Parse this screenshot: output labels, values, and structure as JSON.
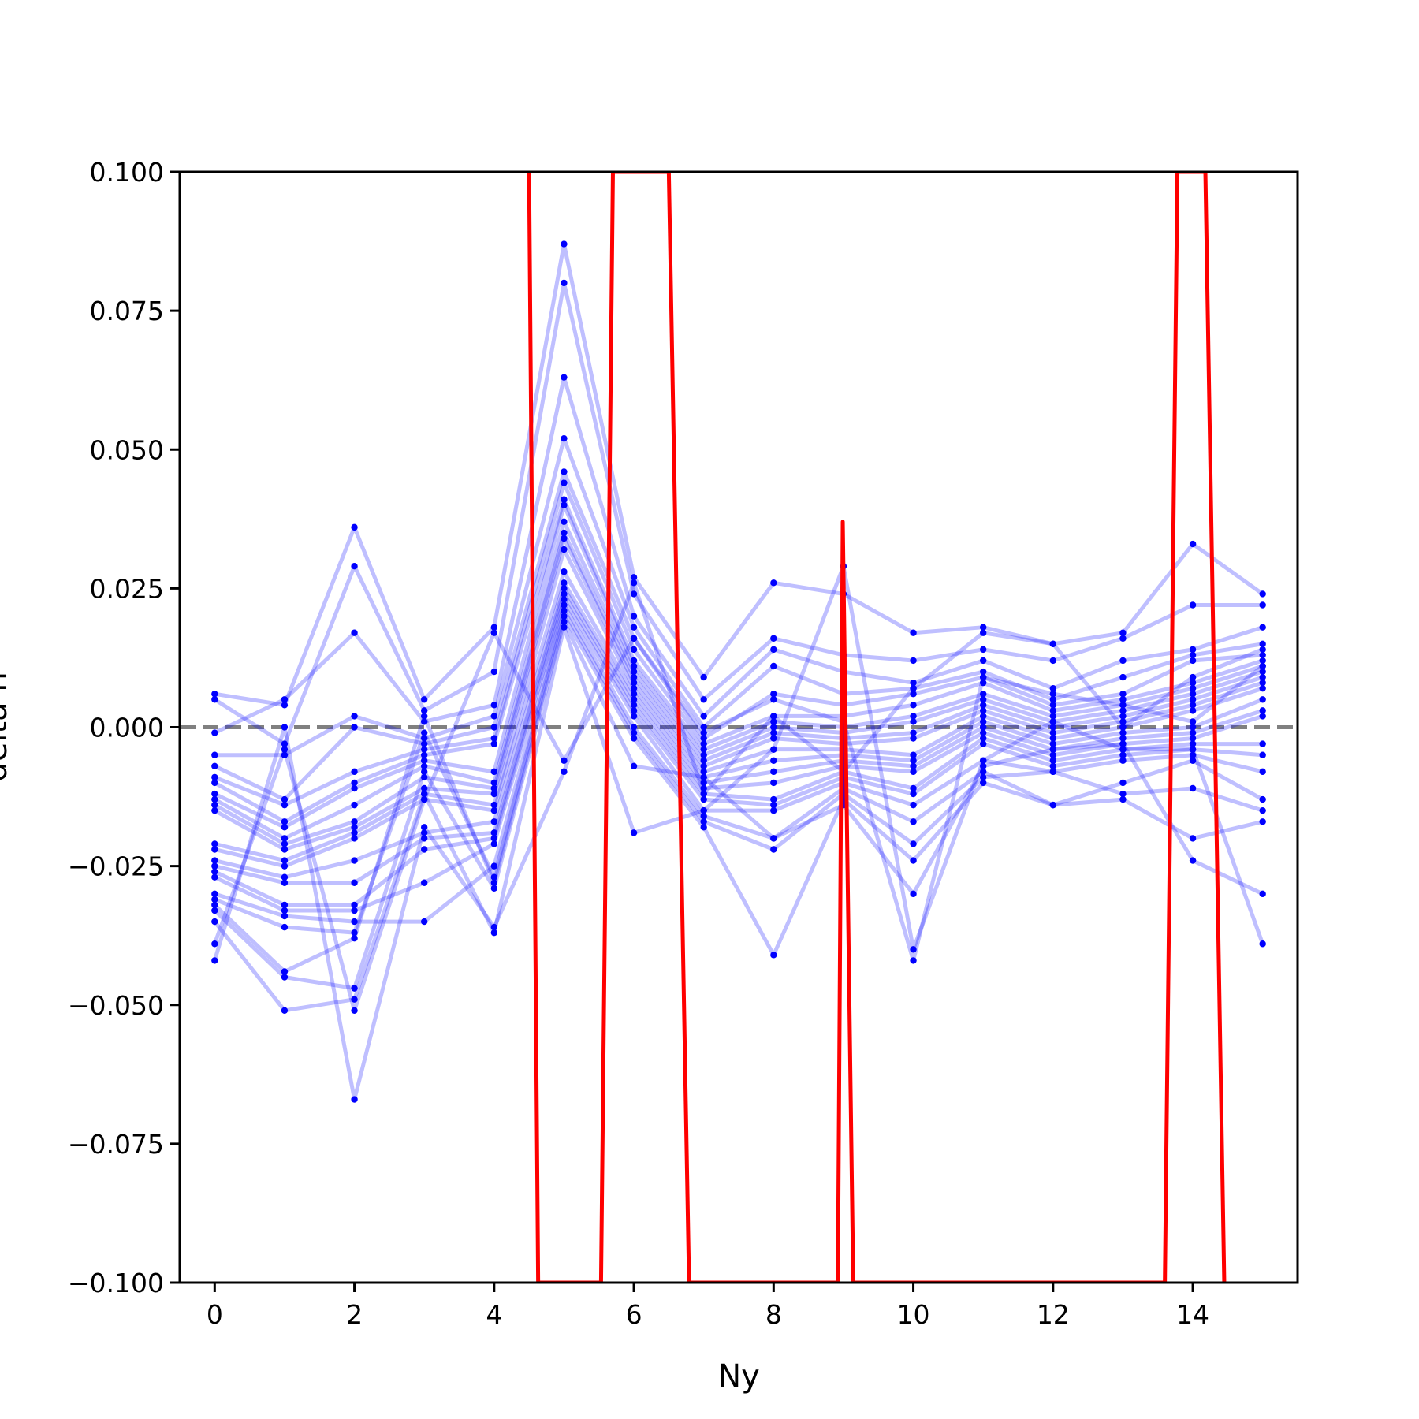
{
  "chart_data": {
    "type": "line",
    "title": "",
    "xlabel": "Ny",
    "ylabel": "delta h",
    "xlim": [
      -0.5,
      15.5
    ],
    "ylim": [
      -0.1,
      0.1
    ],
    "x_ticks": [
      0,
      2,
      4,
      6,
      8,
      10,
      12,
      14
    ],
    "x_tick_labels": [
      "0",
      "2",
      "4",
      "6",
      "8",
      "10",
      "12",
      "14"
    ],
    "y_ticks": [
      -0.1,
      -0.075,
      -0.05,
      -0.025,
      0.0,
      0.025,
      0.05,
      0.075,
      0.1
    ],
    "y_tick_labels": [
      "−0.100",
      "−0.075",
      "−0.050",
      "−0.025",
      "0.000",
      "0.025",
      "0.050",
      "0.075",
      "0.100"
    ],
    "grid": false,
    "legend": "none",
    "reference_line": {
      "y": 0.0,
      "style": "dashed",
      "color": "#808080"
    },
    "colors": {
      "series": "#0000ff",
      "mean": "#ff0000",
      "reference": "#808080"
    },
    "x": [
      0,
      1,
      2,
      3,
      4,
      5,
      6,
      7,
      8,
      9,
      10,
      11,
      12,
      13,
      14,
      15
    ],
    "series": [
      {
        "values": [
          0.006,
          0.004,
          0.036,
          0.005,
          0.018,
          0.087,
          0.027,
          0.009,
          0.026,
          0.024,
          0.017,
          0.018,
          0.015,
          0.017,
          0.033,
          0.024
        ]
      },
      {
        "values": [
          0.005,
          -0.003,
          0.029,
          0.003,
          0.01,
          0.08,
          0.024,
          0.005,
          0.016,
          0.013,
          0.012,
          0.014,
          0.012,
          0.016,
          0.022,
          0.022
        ]
      },
      {
        "values": [
          -0.001,
          0.005,
          0.017,
          0.001,
          0.004,
          0.063,
          0.02,
          0.002,
          0.014,
          0.01,
          0.008,
          0.012,
          0.007,
          0.012,
          0.014,
          0.018
        ]
      },
      {
        "values": [
          -0.005,
          -0.005,
          0.002,
          -0.002,
          0.002,
          0.052,
          0.018,
          0.0,
          0.011,
          0.006,
          0.007,
          0.01,
          0.005,
          0.009,
          0.013,
          0.015
        ]
      },
      {
        "values": [
          -0.007,
          -0.013,
          0.0,
          -0.003,
          0.0,
          0.046,
          0.016,
          -0.002,
          0.006,
          0.004,
          0.006,
          0.009,
          0.004,
          0.006,
          0.012,
          0.013
        ]
      },
      {
        "values": [
          -0.009,
          -0.014,
          -0.008,
          -0.004,
          -0.002,
          0.044,
          0.014,
          -0.003,
          0.002,
          0.002,
          0.004,
          0.008,
          0.003,
          0.005,
          0.008,
          0.012
        ]
      },
      {
        "values": [
          -0.01,
          -0.017,
          -0.01,
          -0.005,
          -0.003,
          0.041,
          0.012,
          -0.004,
          0.001,
          0.0,
          0.002,
          0.006,
          0.002,
          0.004,
          0.007,
          0.011
        ]
      },
      {
        "values": [
          -0.012,
          -0.018,
          -0.011,
          -0.006,
          -0.008,
          0.04,
          0.011,
          -0.005,
          0.0,
          -0.001,
          0.001,
          0.005,
          0.001,
          0.003,
          0.006,
          0.01
        ]
      },
      {
        "values": [
          -0.013,
          -0.02,
          -0.014,
          -0.007,
          -0.01,
          0.037,
          0.01,
          -0.006,
          -0.001,
          -0.002,
          -0.001,
          0.004,
          0.0,
          0.002,
          0.005,
          0.009
        ]
      },
      {
        "values": [
          -0.014,
          -0.021,
          -0.017,
          -0.009,
          -0.011,
          0.035,
          0.009,
          -0.007,
          -0.002,
          -0.003,
          -0.002,
          0.003,
          -0.001,
          0.001,
          0.004,
          0.008
        ]
      },
      {
        "values": [
          -0.015,
          -0.022,
          -0.018,
          -0.011,
          -0.012,
          0.034,
          0.008,
          -0.008,
          -0.004,
          -0.004,
          -0.005,
          0.002,
          -0.002,
          0.0,
          0.003,
          0.007
        ]
      },
      {
        "values": [
          -0.021,
          -0.024,
          -0.019,
          -0.012,
          -0.014,
          0.032,
          0.007,
          -0.009,
          -0.006,
          -0.005,
          -0.006,
          0.001,
          -0.003,
          -0.001,
          0.0,
          0.005
        ]
      },
      {
        "values": [
          -0.022,
          -0.025,
          -0.02,
          -0.013,
          -0.015,
          0.028,
          0.006,
          -0.01,
          -0.008,
          -0.006,
          -0.007,
          0.0,
          -0.004,
          -0.002,
          -0.001,
          0.003
        ]
      },
      {
        "values": [
          -0.024,
          -0.027,
          -0.024,
          -0.019,
          -0.017,
          0.026,
          0.005,
          -0.011,
          -0.01,
          -0.007,
          -0.008,
          -0.001,
          -0.005,
          -0.003,
          -0.002,
          0.002
        ]
      },
      {
        "values": [
          -0.025,
          -0.028,
          -0.028,
          -0.02,
          -0.019,
          0.025,
          0.004,
          -0.012,
          -0.013,
          -0.008,
          -0.011,
          -0.002,
          -0.006,
          -0.004,
          -0.003,
          -0.003
        ]
      },
      {
        "values": [
          -0.026,
          -0.032,
          -0.032,
          -0.022,
          -0.02,
          0.024,
          0.003,
          -0.013,
          -0.014,
          -0.009,
          -0.012,
          -0.003,
          -0.007,
          -0.005,
          -0.004,
          -0.005
        ]
      },
      {
        "values": [
          -0.027,
          -0.033,
          -0.033,
          -0.028,
          -0.021,
          0.023,
          0.002,
          -0.015,
          -0.015,
          -0.01,
          -0.014,
          -0.006,
          -0.008,
          -0.006,
          -0.005,
          -0.008
        ]
      },
      {
        "values": [
          -0.03,
          -0.034,
          -0.035,
          -0.035,
          -0.025,
          0.022,
          0.0,
          -0.016,
          -0.02,
          -0.011,
          -0.017,
          -0.008,
          -0.014,
          -0.01,
          -0.006,
          -0.013
        ]
      },
      {
        "values": [
          -0.031,
          -0.036,
          -0.037,
          -0.001,
          -0.027,
          0.021,
          -0.001,
          -0.017,
          -0.022,
          -0.012,
          -0.021,
          -0.009,
          -0.008,
          -0.012,
          -0.011,
          -0.015
        ]
      },
      {
        "values": [
          -0.032,
          -0.044,
          -0.038,
          0.002,
          -0.028,
          0.02,
          -0.002,
          -0.018,
          -0.041,
          -0.013,
          -0.024,
          -0.01,
          -0.014,
          -0.013,
          -0.02,
          -0.017
        ]
      },
      {
        "values": [
          -0.033,
          -0.045,
          -0.047,
          -0.008,
          -0.029,
          0.019,
          -0.007,
          -0.009,
          -0.02,
          -0.014,
          -0.03,
          -0.007,
          -0.004,
          -0.003,
          -0.024,
          -0.03
        ]
      },
      {
        "values": [
          -0.035,
          -0.051,
          -0.049,
          -0.012,
          -0.037,
          0.018,
          -0.019,
          -0.015,
          -0.004,
          0.029,
          -0.04,
          -0.006,
          0.001,
          -0.004,
          -0.004,
          -0.039
        ]
      },
      {
        "values": [
          -0.039,
          -0.004,
          -0.051,
          -0.013,
          0.017,
          -0.006,
          0.016,
          -0.001,
          0.005,
          0.001,
          -0.042,
          0.009,
          0.006,
          0.004,
          0.001,
          0.011
        ]
      },
      {
        "values": [
          -0.042,
          0.0,
          -0.067,
          -0.018,
          -0.036,
          -0.008,
          0.026,
          -0.012,
          0.002,
          -0.008,
          0.007,
          0.017,
          0.015,
          0.0,
          0.009,
          0.014
        ]
      }
    ],
    "mean_line": {
      "x": [
        4.5,
        4.63,
        5.53,
        5.7,
        6.5,
        6.79,
        8.92,
        8.99,
        9.14,
        13.6,
        13.78,
        14.18,
        14.45
      ],
      "y": [
        0.1,
        -0.1,
        -0.1,
        0.1,
        0.1,
        -0.1,
        -0.1,
        0.037,
        -0.1,
        -0.1,
        0.1,
        0.1,
        -0.1
      ]
    }
  }
}
